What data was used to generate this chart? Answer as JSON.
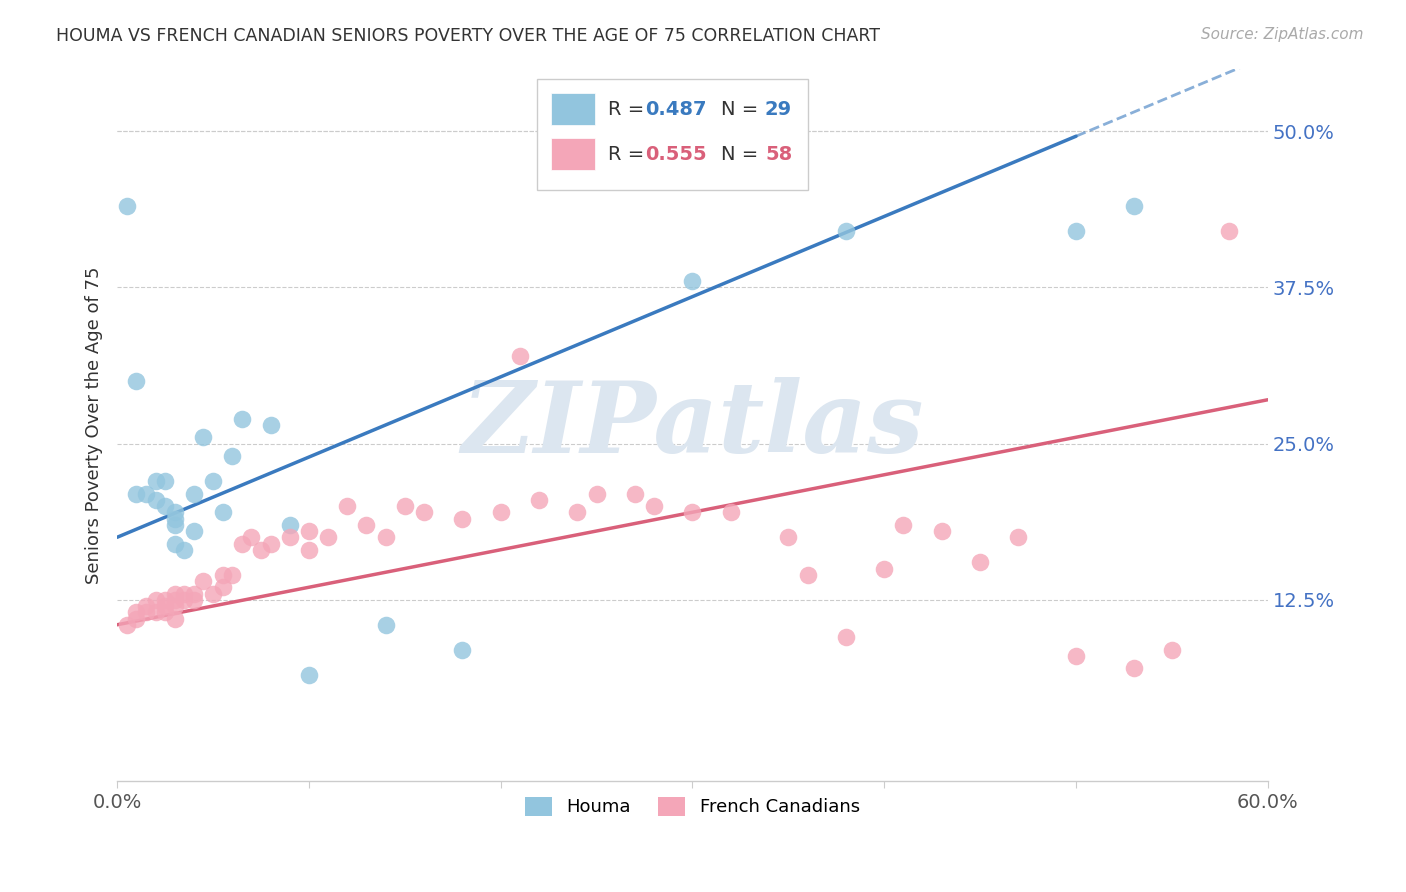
{
  "title": "HOUMA VS FRENCH CANADIAN SENIORS POVERTY OVER THE AGE OF 75 CORRELATION CHART",
  "source": "Source: ZipAtlas.com",
  "ylabel": "Seniors Poverty Over the Age of 75",
  "xlim": [
    0.0,
    0.6
  ],
  "ylim": [
    -0.02,
    0.55
  ],
  "yticks": [
    0.0,
    0.125,
    0.25,
    0.375,
    0.5
  ],
  "ytick_labels": [
    "",
    "12.5%",
    "25.0%",
    "37.5%",
    "50.0%"
  ],
  "xticks": [
    0.0,
    0.1,
    0.2,
    0.3,
    0.4,
    0.5,
    0.6
  ],
  "houma_R": "0.487",
  "houma_N": "29",
  "fc_R": "0.555",
  "fc_N": "58",
  "houma_color": "#92c5de",
  "fc_color": "#f4a6b8",
  "houma_line_color": "#3a7abf",
  "fc_line_color": "#d9607a",
  "background_color": "#ffffff",
  "grid_color": "#cccccc",
  "houma_x": [
    0.005,
    0.01,
    0.01,
    0.015,
    0.02,
    0.02,
    0.025,
    0.025,
    0.03,
    0.03,
    0.03,
    0.03,
    0.035,
    0.04,
    0.04,
    0.045,
    0.05,
    0.055,
    0.06,
    0.065,
    0.08,
    0.09,
    0.1,
    0.14,
    0.18,
    0.3,
    0.38,
    0.5,
    0.53
  ],
  "houma_y": [
    0.44,
    0.3,
    0.21,
    0.21,
    0.22,
    0.205,
    0.2,
    0.22,
    0.195,
    0.19,
    0.185,
    0.17,
    0.165,
    0.18,
    0.21,
    0.255,
    0.22,
    0.195,
    0.24,
    0.27,
    0.265,
    0.185,
    0.065,
    0.105,
    0.085,
    0.38,
    0.42,
    0.42,
    0.44
  ],
  "fc_x": [
    0.005,
    0.01,
    0.01,
    0.015,
    0.015,
    0.02,
    0.02,
    0.025,
    0.025,
    0.025,
    0.03,
    0.03,
    0.03,
    0.03,
    0.035,
    0.035,
    0.04,
    0.04,
    0.045,
    0.05,
    0.055,
    0.055,
    0.06,
    0.065,
    0.07,
    0.075,
    0.08,
    0.09,
    0.1,
    0.1,
    0.11,
    0.12,
    0.13,
    0.14,
    0.15,
    0.16,
    0.18,
    0.2,
    0.21,
    0.22,
    0.24,
    0.25,
    0.27,
    0.28,
    0.3,
    0.32,
    0.35,
    0.36,
    0.38,
    0.4,
    0.41,
    0.43,
    0.45,
    0.47,
    0.5,
    0.53,
    0.55,
    0.58
  ],
  "fc_y": [
    0.105,
    0.11,
    0.115,
    0.115,
    0.12,
    0.115,
    0.125,
    0.125,
    0.12,
    0.115,
    0.13,
    0.125,
    0.12,
    0.11,
    0.13,
    0.125,
    0.13,
    0.125,
    0.14,
    0.13,
    0.145,
    0.135,
    0.145,
    0.17,
    0.175,
    0.165,
    0.17,
    0.175,
    0.165,
    0.18,
    0.175,
    0.2,
    0.185,
    0.175,
    0.2,
    0.195,
    0.19,
    0.195,
    0.32,
    0.205,
    0.195,
    0.21,
    0.21,
    0.2,
    0.195,
    0.195,
    0.175,
    0.145,
    0.095,
    0.15,
    0.185,
    0.18,
    0.155,
    0.175,
    0.08,
    0.07,
    0.085,
    0.42
  ],
  "houma_line_x0": 0.0,
  "houma_line_y0": 0.175,
  "houma_line_x1": 0.6,
  "houma_line_y1": 0.56,
  "fc_line_x0": 0.0,
  "fc_line_y0": 0.105,
  "fc_line_x1": 0.6,
  "fc_line_y1": 0.285,
  "watermark_text": "ZIPatlas",
  "watermark_color": "#dce6f0"
}
